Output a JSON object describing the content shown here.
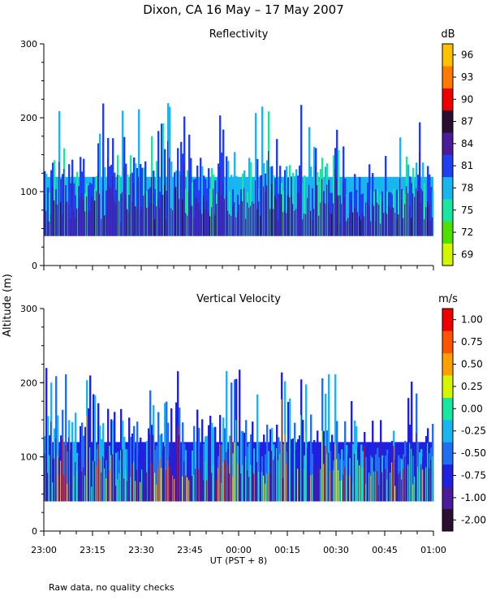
{
  "title": "Dixon, CA 16 May – 17 May 2007",
  "ylabel": "Altitude (m)",
  "xlabel": "UT  (PST + 8)",
  "footnote": "Raw data, no quality checks",
  "chart_data": [
    {
      "type": "heatmap",
      "title": "Reflectivity",
      "units": "dB",
      "ylim": [
        0,
        300
      ],
      "yticks": [
        "0",
        "100",
        "200",
        "300"
      ],
      "xlim_minutes": [
        0,
        120
      ],
      "xticks": [
        "23:00",
        "23:15",
        "23:30",
        "23:45",
        "00:00",
        "00:15",
        "00:30",
        "00:45",
        "01:00"
      ],
      "data_range_m": [
        40,
        220
      ],
      "colorbar": {
        "labels": [
          "69",
          "72",
          "75",
          "78",
          "81",
          "84",
          "87",
          "90",
          "93",
          "96"
        ],
        "colors": [
          "#d4f700",
          "#4fe000",
          "#19e6a0",
          "#17b6ef",
          "#1f3ff0",
          "#4b1b99",
          "#2a1030",
          "#ee0000",
          "#ff7a00",
          "#ffc000"
        ]
      }
    },
    {
      "type": "heatmap",
      "title": "Vertical Velocity",
      "units": "m/s",
      "ylim": [
        0,
        300
      ],
      "yticks": [
        "0",
        "100",
        "200",
        "300"
      ],
      "xlim_minutes": [
        0,
        120
      ],
      "xticks": [
        "23:00",
        "23:15",
        "23:30",
        "23:45",
        "00:00",
        "00:15",
        "00:30",
        "00:45",
        "01:00"
      ],
      "data_range_m": [
        40,
        220
      ],
      "colorbar": {
        "labels": [
          "-2.00",
          "-1.00",
          "-0.75",
          "-0.50",
          "-0.25",
          "0.00",
          "0.25",
          "0.50",
          "0.75",
          "1.00"
        ],
        "colors": [
          "#2a1030",
          "#4b1b99",
          "#2020e0",
          "#1f6ff0",
          "#17b6ef",
          "#19e6a0",
          "#d4f700",
          "#ffa000",
          "#ff5500",
          "#ee0000"
        ]
      }
    }
  ]
}
